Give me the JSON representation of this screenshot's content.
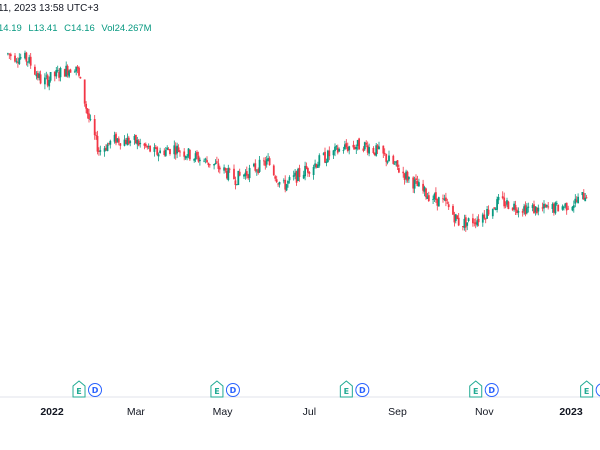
{
  "header": {
    "datetime": "11, 2023 13:58 UTC+3",
    "ohlc": {
      "high": "14.19",
      "low": "L13.41",
      "close": "C14.16",
      "volume": "Vol24.267M"
    }
  },
  "colors": {
    "up": "#089981",
    "down": "#f23645",
    "earnings": "#22ab94",
    "dividends": "#2962ff",
    "axis_text": "#131722"
  },
  "chart_data": {
    "type": "candlestick",
    "title": "",
    "xlabel": "",
    "ylabel": "",
    "x_axis_labels": [
      {
        "label": "2022",
        "date": "2022-01",
        "bold": true
      },
      {
        "label": "Mar",
        "date": "2022-03",
        "bold": false
      },
      {
        "label": "May",
        "date": "2022-05",
        "bold": false
      },
      {
        "label": "Jul",
        "date": "2022-07",
        "bold": false
      },
      {
        "label": "Sep",
        "date": "2022-09",
        "bold": false
      },
      {
        "label": "Nov",
        "date": "2022-11",
        "bold": false
      },
      {
        "label": "2023",
        "date": "2023-01",
        "bold": true
      }
    ],
    "y_range": [
      9.5,
      20.8
    ],
    "grid": false,
    "price_path": [
      {
        "date": "2021-12-01",
        "close": 20.3
      },
      {
        "date": "2021-12-15",
        "close": 20.1
      },
      {
        "date": "2021-12-25",
        "close": 19.3
      },
      {
        "date": "2022-01-05",
        "close": 19.6
      },
      {
        "date": "2022-01-18",
        "close": 19.9
      },
      {
        "date": "2022-01-28",
        "close": 17.8
      },
      {
        "date": "2022-02-03",
        "close": 16.9
      },
      {
        "date": "2022-02-15",
        "close": 17.3
      },
      {
        "date": "2022-03-01",
        "close": 17.2
      },
      {
        "date": "2022-03-15",
        "close": 16.8
      },
      {
        "date": "2022-03-28",
        "close": 17.0
      },
      {
        "date": "2022-04-10",
        "close": 16.7
      },
      {
        "date": "2022-04-25",
        "close": 16.4
      },
      {
        "date": "2022-05-10",
        "close": 15.9
      },
      {
        "date": "2022-05-25",
        "close": 16.3
      },
      {
        "date": "2022-06-02",
        "close": 16.5
      },
      {
        "date": "2022-06-12",
        "close": 15.6
      },
      {
        "date": "2022-06-25",
        "close": 16.1
      },
      {
        "date": "2022-07-10",
        "close": 16.6
      },
      {
        "date": "2022-07-25",
        "close": 17.0
      },
      {
        "date": "2022-08-08",
        "close": 17.1
      },
      {
        "date": "2022-08-20",
        "close": 16.8
      },
      {
        "date": "2022-09-05",
        "close": 16.1
      },
      {
        "date": "2022-09-20",
        "close": 15.4
      },
      {
        "date": "2022-10-05",
        "close": 15.0
      },
      {
        "date": "2022-10-15",
        "close": 14.3
      },
      {
        "date": "2022-10-28",
        "close": 14.5
      },
      {
        "date": "2022-11-12",
        "close": 15.1
      },
      {
        "date": "2022-11-25",
        "close": 14.9
      },
      {
        "date": "2022-12-10",
        "close": 14.8
      },
      {
        "date": "2022-12-25",
        "close": 14.9
      },
      {
        "date": "2023-01-05",
        "close": 15.1
      },
      {
        "date": "2023-01-12",
        "close": 15.4
      }
    ],
    "events": [
      {
        "date": "2022-01-20",
        "items": [
          "E",
          "D"
        ]
      },
      {
        "date": "2022-04-27",
        "items": [
          "E",
          "D"
        ]
      },
      {
        "date": "2022-07-27",
        "items": [
          "E",
          "D"
        ]
      },
      {
        "date": "2022-10-26",
        "items": [
          "E",
          "D"
        ]
      },
      {
        "date": "2023-01-12",
        "items": [
          "E",
          "D"
        ]
      }
    ]
  }
}
